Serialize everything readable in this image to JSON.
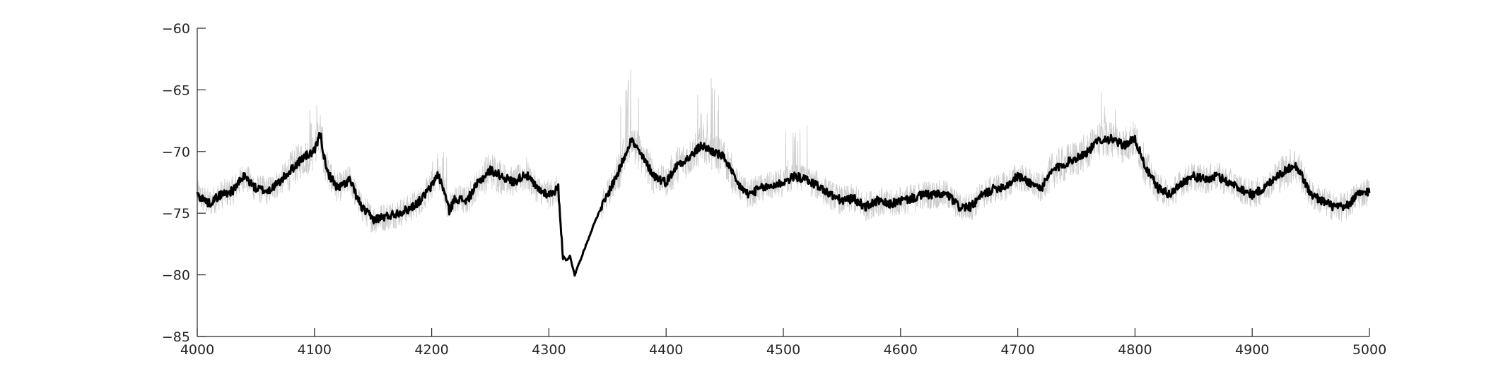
{
  "chart_data": {
    "type": "line",
    "title": "",
    "xlabel": "",
    "ylabel": "",
    "xlim": [
      4000,
      5000
    ],
    "ylim": [
      -85,
      -60
    ],
    "xticks": [
      4000,
      4100,
      4200,
      4300,
      4400,
      4500,
      4600,
      4700,
      4800,
      4900,
      5000
    ],
    "yticks": [
      -85,
      -80,
      -75,
      -70,
      -65,
      -60
    ],
    "xtick_labels": [
      "4000",
      "4100",
      "4200",
      "4300",
      "4400",
      "4500",
      "4600",
      "4700",
      "4800",
      "4900",
      "5000"
    ],
    "ytick_labels": [
      "−85",
      "−80",
      "−75",
      "−70",
      "−65",
      "−60"
    ],
    "grid": false,
    "legend": "none",
    "series": [
      {
        "role": "mean-trace",
        "color": "#000000",
        "x": [
          4000,
          4010,
          4020,
          4030,
          4040,
          4050,
          4060,
          4070,
          4080,
          4090,
          4100,
          4105,
          4110,
          4120,
          4130,
          4140,
          4150,
          4160,
          4170,
          4180,
          4190,
          4200,
          4205,
          4210,
          4215,
          4220,
          4230,
          4240,
          4250,
          4260,
          4270,
          4280,
          4290,
          4300,
          4308,
          4312,
          4315,
          4318,
          4322,
          4330,
          4340,
          4350,
          4360,
          4370,
          4380,
          4390,
          4400,
          4410,
          4420,
          4430,
          4440,
          4450,
          4460,
          4470,
          4480,
          4490,
          4500,
          4510,
          4520,
          4530,
          4540,
          4550,
          4560,
          4570,
          4580,
          4590,
          4600,
          4610,
          4620,
          4630,
          4640,
          4650,
          4660,
          4670,
          4680,
          4690,
          4700,
          4710,
          4720,
          4730,
          4740,
          4750,
          4760,
          4770,
          4780,
          4790,
          4800,
          4810,
          4820,
          4830,
          4840,
          4850,
          4860,
          4870,
          4880,
          4890,
          4900,
          4910,
          4920,
          4930,
          4935,
          4940,
          4950,
          4960,
          4970,
          4980,
          4990,
          5000
        ],
        "y": [
          -73.5,
          -74.2,
          -73.5,
          -73.2,
          -72.0,
          -73.0,
          -73.2,
          -72.5,
          -71.5,
          -70.5,
          -70.0,
          -68.5,
          -71.5,
          -73.0,
          -72.3,
          -74.5,
          -75.5,
          -75.3,
          -75.0,
          -74.7,
          -74.0,
          -72.8,
          -71.8,
          -73.0,
          -74.8,
          -73.8,
          -74.0,
          -72.5,
          -71.5,
          -72.0,
          -72.5,
          -71.8,
          -73.0,
          -73.5,
          -73.0,
          -78.5,
          -78.8,
          -78.5,
          -80.0,
          -78.0,
          -75.5,
          -73.5,
          -71.5,
          -69.0,
          -70.5,
          -72.0,
          -72.5,
          -71.0,
          -70.5,
          -69.5,
          -70.0,
          -70.5,
          -72.5,
          -73.5,
          -73.0,
          -72.8,
          -72.5,
          -72.0,
          -72.3,
          -72.8,
          -73.5,
          -74.0,
          -73.8,
          -74.5,
          -74.0,
          -74.3,
          -74.0,
          -73.8,
          -73.5,
          -73.5,
          -73.5,
          -74.5,
          -74.5,
          -73.5,
          -73.0,
          -72.8,
          -72.0,
          -72.5,
          -73.0,
          -71.5,
          -71.0,
          -70.5,
          -70.0,
          -69.0,
          -69.0,
          -69.5,
          -69.0,
          -71.5,
          -73.0,
          -73.5,
          -72.5,
          -72.0,
          -72.3,
          -72.0,
          -72.5,
          -73.0,
          -73.5,
          -73.0,
          -72.0,
          -71.5,
          -71.0,
          -71.5,
          -73.5,
          -74.0,
          -74.5,
          -74.5,
          -73.5,
          -73.2
        ]
      },
      {
        "role": "raw-trace",
        "color": "#cccccc",
        "noise_amplitude": 1.2,
        "spikes": [
          [
            4105,
            -64.8
          ],
          [
            4370,
            -64.0
          ],
          [
            4435,
            -65.0
          ],
          [
            4775,
            -66.0
          ],
          [
            4205,
            -70.0
          ],
          [
            4510,
            -69.0
          ]
        ]
      }
    ]
  }
}
